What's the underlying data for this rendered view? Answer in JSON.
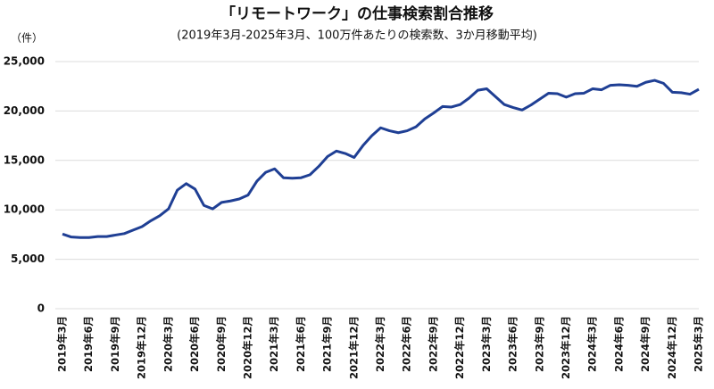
{
  "chart_data": {
    "type": "line",
    "title": "「リモートワーク」の仕事検索割合推移",
    "subtitle": "(2019年3月-2025年3月、100万件あたりの検索数、3か月移動平均)",
    "y_label": "（件）",
    "categories": [
      "2019年3月",
      null,
      null,
      "2019年6月",
      null,
      null,
      "2019年9月",
      null,
      null,
      "2019年12月",
      null,
      null,
      "2020年3月",
      null,
      null,
      "2020年6月",
      null,
      null,
      "2020年9月",
      null,
      null,
      "2020年12月",
      null,
      null,
      "2021年3月",
      null,
      null,
      "2021年6月",
      null,
      null,
      "2021年9月",
      null,
      null,
      "2021年12月",
      null,
      null,
      "2022年3月",
      null,
      null,
      "2022年6月",
      null,
      null,
      "2022年9月",
      null,
      null,
      "2022年12月",
      null,
      null,
      "2023年3月",
      null,
      null,
      "2023年6月",
      null,
      null,
      "2023年9月",
      null,
      null,
      "2023年12月",
      null,
      null,
      "2024年3月",
      null,
      null,
      "2024年6月",
      null,
      null,
      "2024年9月",
      null,
      null,
      "2024年12月",
      null,
      null,
      "2025年3月"
    ],
    "series": [
      {
        "name": "検索数",
        "color": "#1f3f94",
        "values": [
          7550,
          7250,
          7200,
          7200,
          7300,
          7300,
          7450,
          7600,
          7950,
          8300,
          8900,
          9400,
          10100,
          12000,
          12650,
          12100,
          10450,
          10100,
          10750,
          10900,
          11100,
          11500,
          12900,
          13800,
          14150,
          13250,
          13200,
          13250,
          13550,
          14400,
          15400,
          15950,
          15700,
          15300,
          16500,
          17500,
          18300,
          18000,
          17800,
          18000,
          18400,
          19200,
          19800,
          20450,
          20400,
          20650,
          21300,
          22100,
          22250,
          21450,
          20650,
          20350,
          20100,
          20600,
          21200,
          21800,
          21750,
          21400,
          21750,
          21800,
          22250,
          22150,
          22600,
          22650,
          22600,
          22500,
          22900,
          23100,
          22800,
          21900,
          21850,
          21700,
          22200
        ]
      }
    ],
    "ylim": [
      0,
      25000
    ],
    "yticks": [
      0,
      {
        "value": 5000,
        "label": "5,000"
      },
      {
        "value": 10000,
        "label": "10,000"
      },
      {
        "value": 15000,
        "label": "15,000"
      },
      {
        "value": 20000,
        "label": "20,000"
      },
      {
        "value": 25000,
        "label": "25,000"
      }
    ],
    "grid": true
  }
}
